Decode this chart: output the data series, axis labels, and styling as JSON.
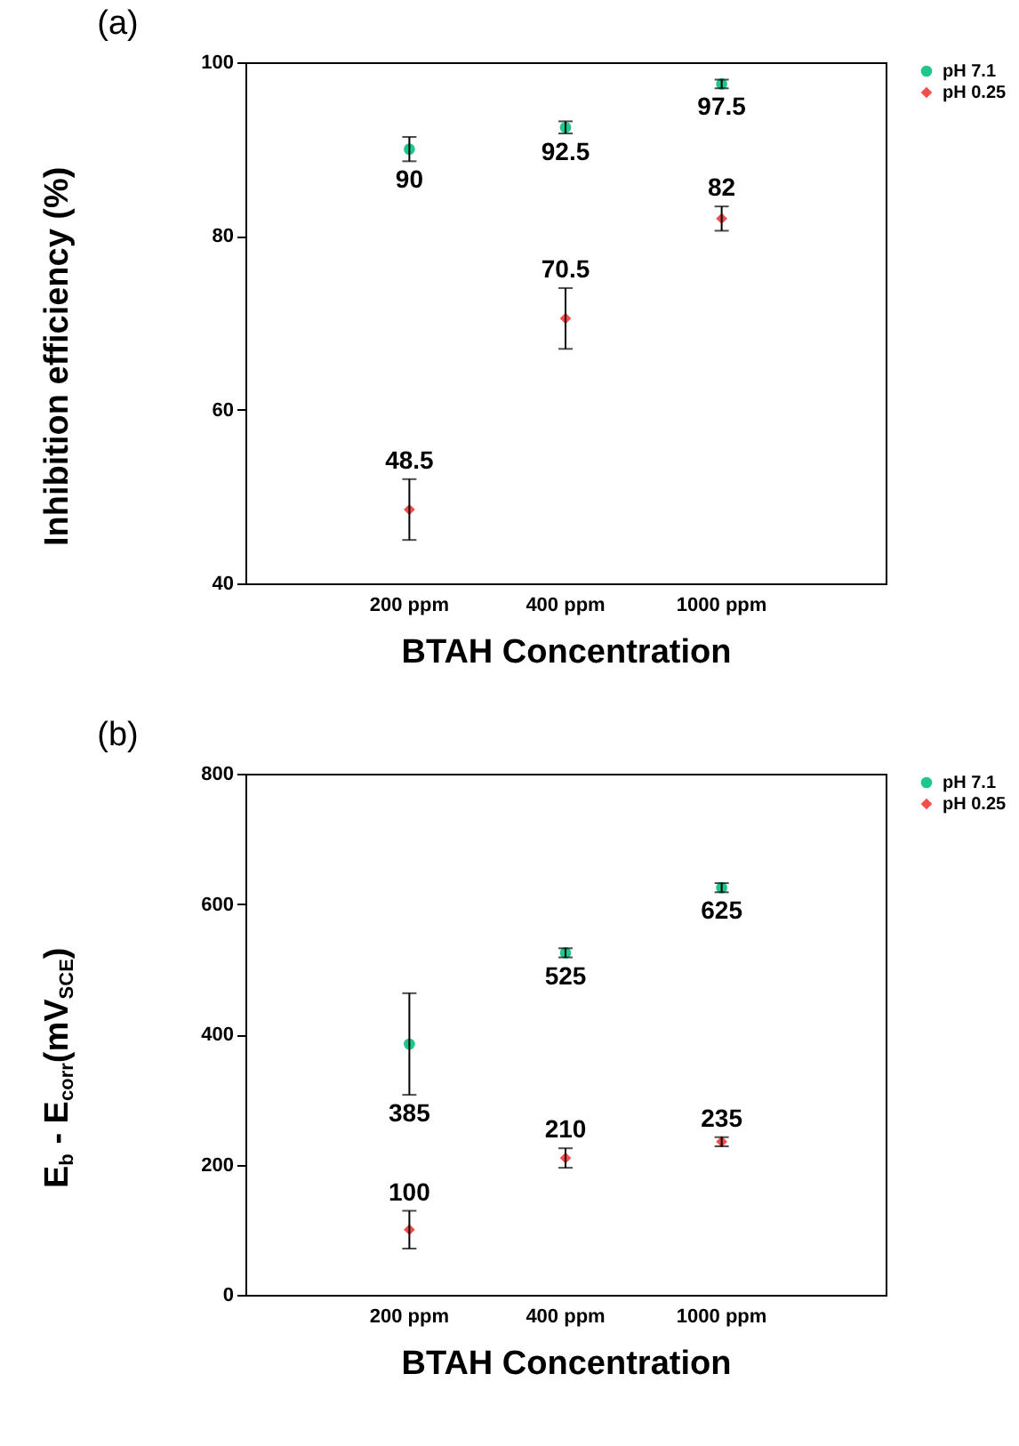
{
  "chart_data": [
    {
      "type": "scatter",
      "title": "(a)",
      "xlabel": "BTAH Concentration",
      "ylabel": "Inhibition efficiency (%)",
      "categories": [
        "200 ppm",
        "400 ppm",
        "1000 ppm"
      ],
      "ylim": [
        40,
        100
      ],
      "yticks": [
        40,
        60,
        80,
        100
      ],
      "legend": "top right",
      "data_labels": true,
      "grid": false,
      "series": [
        {
          "name": "pH 7.1",
          "color": "#1ec88a",
          "marker": "circle",
          "values": [
            90,
            92.5,
            97.5
          ],
          "errors": [
            1.4,
            0.7,
            0.5
          ]
        },
        {
          "name": "pH 0.25",
          "color": "#f44c4c",
          "marker": "diamond",
          "values": [
            48.5,
            70.5,
            82
          ],
          "errors": [
            3.5,
            3.5,
            1.4
          ]
        }
      ]
    },
    {
      "type": "scatter",
      "title": "(b)",
      "xlabel": "BTAH Concentration",
      "ylabel": "E$_{b}$ - E$_{corr}$(mV$_{SCE}$)",
      "categories": [
        "200 ppm",
        "400 ppm",
        "1000 ppm"
      ],
      "ylim": [
        0,
        800
      ],
      "yticks": [
        0,
        200,
        400,
        600,
        800
      ],
      "legend": "top right",
      "data_labels": true,
      "grid": false,
      "series": [
        {
          "name": "pH 7.1",
          "color": "#1ec88a",
          "marker": "circle",
          "values": [
            385,
            525,
            625
          ],
          "errors": [
            78,
            7,
            7
          ]
        },
        {
          "name": "pH 0.25",
          "color": "#f44c4c",
          "marker": "diamond",
          "values": [
            100,
            210,
            235
          ],
          "errors": [
            29,
            15,
            7
          ]
        }
      ]
    }
  ]
}
